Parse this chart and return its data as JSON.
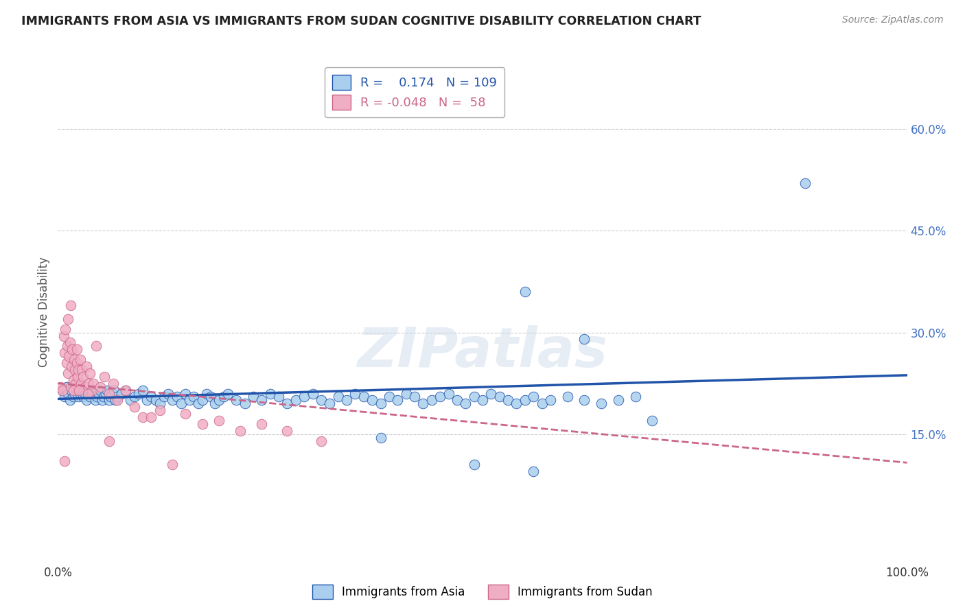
{
  "title": "IMMIGRANTS FROM ASIA VS IMMIGRANTS FROM SUDAN COGNITIVE DISABILITY CORRELATION CHART",
  "source": "Source: ZipAtlas.com",
  "ylabel": "Cognitive Disability",
  "xlim": [
    0.0,
    1.0
  ],
  "ylim": [
    -0.04,
    0.7
  ],
  "yticks": [
    0.15,
    0.3,
    0.45,
    0.6
  ],
  "ytick_labels": [
    "15.0%",
    "30.0%",
    "45.0%",
    "60.0%"
  ],
  "legend1_R": "0.174",
  "legend1_N": "109",
  "legend2_R": "-0.048",
  "legend2_N": "58",
  "color_asia": "#aacfee",
  "color_sudan": "#f0aec4",
  "line_color_asia": "#2255aa",
  "line_color_sudan": "#cc6688",
  "background_color": "#ffffff",
  "grid_color": "#cccccc",
  "watermark": "ZIPatlas",
  "asia_scatter_x": [
    0.005,
    0.008,
    0.01,
    0.012,
    0.014,
    0.016,
    0.018,
    0.02,
    0.022,
    0.024,
    0.026,
    0.028,
    0.03,
    0.032,
    0.034,
    0.036,
    0.038,
    0.04,
    0.042,
    0.044,
    0.046,
    0.048,
    0.05,
    0.052,
    0.054,
    0.056,
    0.058,
    0.06,
    0.062,
    0.064,
    0.066,
    0.068,
    0.07,
    0.075,
    0.08,
    0.085,
    0.09,
    0.095,
    0.1,
    0.105,
    0.11,
    0.115,
    0.12,
    0.125,
    0.13,
    0.135,
    0.14,
    0.145,
    0.15,
    0.155,
    0.16,
    0.165,
    0.17,
    0.175,
    0.18,
    0.185,
    0.19,
    0.195,
    0.2,
    0.21,
    0.22,
    0.23,
    0.24,
    0.25,
    0.26,
    0.27,
    0.28,
    0.29,
    0.3,
    0.31,
    0.32,
    0.33,
    0.34,
    0.35,
    0.36,
    0.37,
    0.38,
    0.39,
    0.4,
    0.41,
    0.42,
    0.43,
    0.44,
    0.45,
    0.46,
    0.47,
    0.48,
    0.49,
    0.5,
    0.51,
    0.52,
    0.53,
    0.54,
    0.55,
    0.56,
    0.57,
    0.58,
    0.6,
    0.62,
    0.64,
    0.66,
    0.68,
    0.7,
    0.55,
    0.62,
    0.88,
    0.49,
    0.38,
    0.56
  ],
  "asia_scatter_y": [
    0.215,
    0.205,
    0.22,
    0.21,
    0.2,
    0.215,
    0.205,
    0.21,
    0.215,
    0.205,
    0.21,
    0.215,
    0.205,
    0.21,
    0.2,
    0.215,
    0.205,
    0.21,
    0.215,
    0.2,
    0.205,
    0.21,
    0.215,
    0.2,
    0.205,
    0.21,
    0.215,
    0.2,
    0.205,
    0.21,
    0.215,
    0.2,
    0.205,
    0.21,
    0.215,
    0.2,
    0.205,
    0.21,
    0.215,
    0.2,
    0.205,
    0.2,
    0.195,
    0.205,
    0.21,
    0.2,
    0.205,
    0.195,
    0.21,
    0.2,
    0.205,
    0.195,
    0.2,
    0.21,
    0.205,
    0.195,
    0.2,
    0.205,
    0.21,
    0.2,
    0.195,
    0.205,
    0.2,
    0.21,
    0.205,
    0.195,
    0.2,
    0.205,
    0.21,
    0.2,
    0.195,
    0.205,
    0.2,
    0.21,
    0.205,
    0.2,
    0.195,
    0.205,
    0.2,
    0.21,
    0.205,
    0.195,
    0.2,
    0.205,
    0.21,
    0.2,
    0.195,
    0.205,
    0.2,
    0.21,
    0.205,
    0.2,
    0.195,
    0.2,
    0.205,
    0.195,
    0.2,
    0.205,
    0.2,
    0.195,
    0.2,
    0.205,
    0.17,
    0.36,
    0.29,
    0.52,
    0.105,
    0.145,
    0.095
  ],
  "sudan_scatter_x": [
    0.003,
    0.005,
    0.007,
    0.008,
    0.009,
    0.01,
    0.011,
    0.012,
    0.013,
    0.014,
    0.015,
    0.016,
    0.017,
    0.018,
    0.019,
    0.02,
    0.021,
    0.022,
    0.023,
    0.024,
    0.025,
    0.026,
    0.027,
    0.028,
    0.03,
    0.032,
    0.034,
    0.036,
    0.038,
    0.04,
    0.042,
    0.045,
    0.05,
    0.055,
    0.06,
    0.065,
    0.07,
    0.08,
    0.09,
    0.1,
    0.11,
    0.12,
    0.135,
    0.15,
    0.17,
    0.19,
    0.215,
    0.24,
    0.27,
    0.31,
    0.012,
    0.015,
    0.018,
    0.022,
    0.008,
    0.025,
    0.035,
    0.06
  ],
  "sudan_scatter_y": [
    0.22,
    0.215,
    0.295,
    0.27,
    0.305,
    0.255,
    0.28,
    0.24,
    0.265,
    0.285,
    0.22,
    0.25,
    0.275,
    0.23,
    0.26,
    0.245,
    0.225,
    0.255,
    0.235,
    0.245,
    0.22,
    0.26,
    0.225,
    0.245,
    0.235,
    0.22,
    0.25,
    0.225,
    0.24,
    0.215,
    0.225,
    0.28,
    0.22,
    0.235,
    0.21,
    0.225,
    0.2,
    0.215,
    0.19,
    0.175,
    0.175,
    0.185,
    0.105,
    0.18,
    0.165,
    0.17,
    0.155,
    0.165,
    0.155,
    0.14,
    0.32,
    0.34,
    0.215,
    0.275,
    0.11,
    0.215,
    0.21,
    0.14
  ],
  "asia_line_x": [
    0.0,
    1.0
  ],
  "asia_line_y": [
    0.202,
    0.237
  ],
  "sudan_line_x": [
    0.0,
    1.0
  ],
  "sudan_line_y": [
    0.225,
    0.108
  ]
}
